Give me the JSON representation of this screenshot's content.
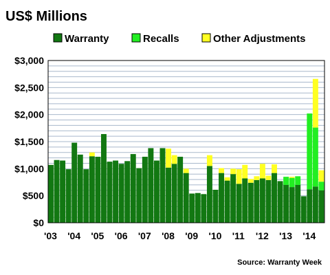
{
  "chart_data": {
    "type": "bar",
    "stacked": true,
    "title": "US$ Millions",
    "source": "Source: Warranty Week",
    "ylim": [
      0,
      3000
    ],
    "y_ticks": [
      "$0",
      "$500",
      "$1,000",
      "$1,500",
      "$2,000",
      "$2,500",
      "$3,000"
    ],
    "x_tick_labels": [
      "'03",
      "'04",
      "'05",
      "'06",
      "'07",
      "'08",
      "'09",
      "'10",
      "'11",
      "'12",
      "'13",
      "'14"
    ],
    "grid": true,
    "legend_position": "top",
    "quarters_per_year": 4,
    "first_quarter_offset": 0,
    "colors": {
      "Warranty": "#127812",
      "Recalls": "#22ee22",
      "Other Adjustments": "#ffff22",
      "grid": "#a8b8cc",
      "plot_bg": "#ffffff"
    },
    "series": [
      {
        "name": "Warranty",
        "values": [
          1070,
          1160,
          1150,
          990,
          1480,
          1260,
          990,
          1230,
          1220,
          1640,
          1130,
          1150,
          1090,
          1140,
          1270,
          1010,
          1220,
          1380,
          1150,
          1380,
          1020,
          1090,
          1220,
          920,
          540,
          550,
          530,
          1050,
          610,
          920,
          780,
          900,
          720,
          820,
          740,
          790,
          820,
          790,
          920,
          770,
          700,
          660,
          700,
          490,
          620,
          670,
          600
        ]
      },
      {
        "name": "Recalls",
        "values": [
          0,
          0,
          0,
          0,
          0,
          0,
          0,
          0,
          0,
          0,
          0,
          0,
          0,
          0,
          0,
          0,
          0,
          0,
          0,
          0,
          0,
          0,
          0,
          0,
          0,
          0,
          0,
          0,
          0,
          0,
          0,
          0,
          0,
          0,
          0,
          0,
          0,
          0,
          0,
          0,
          150,
          170,
          160,
          0,
          1400,
          1090,
          160
        ]
      },
      {
        "name": "Other Adjustments",
        "values": [
          0,
          0,
          0,
          0,
          0,
          0,
          0,
          70,
          0,
          0,
          0,
          0,
          0,
          0,
          0,
          0,
          0,
          0,
          0,
          0,
          350,
          160,
          0,
          80,
          0,
          0,
          0,
          200,
          0,
          90,
          60,
          100,
          270,
          250,
          70,
          70,
          270,
          80,
          160,
          0,
          0,
          20,
          0,
          0,
          0,
          900,
          210
        ]
      }
    ]
  }
}
